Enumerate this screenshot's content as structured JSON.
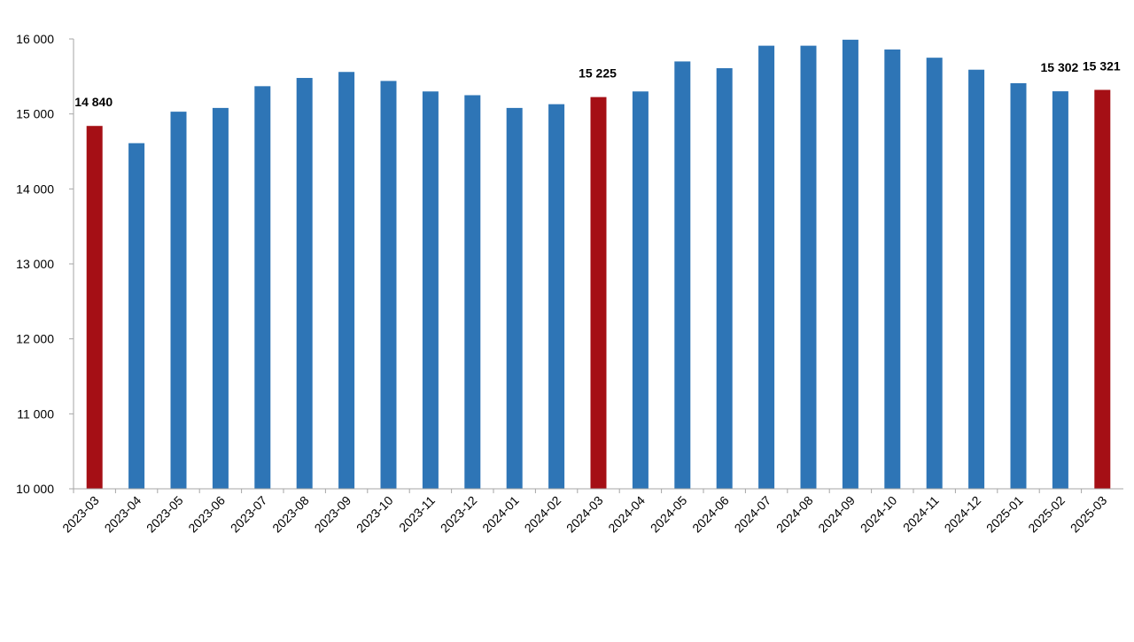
{
  "chart_data": {
    "type": "bar",
    "title": "",
    "xlabel": "",
    "ylabel": "",
    "ylim": [
      10000,
      16000
    ],
    "y_ticks": [
      10000,
      11000,
      12000,
      13000,
      14000,
      15000,
      16000
    ],
    "y_tick_labels": [
      "10 000",
      "11 000",
      "12 000",
      "13 000",
      "14 000",
      "15 000",
      "16 000"
    ],
    "grid": false,
    "legend": "none",
    "categories": [
      "2023-03",
      "2023-04",
      "2023-05",
      "2023-06",
      "2023-07",
      "2023-08",
      "2023-09",
      "2023-10",
      "2023-11",
      "2023-12",
      "2024-01",
      "2024-02",
      "2024-03",
      "2024-04",
      "2024-05",
      "2024-06",
      "2024-07",
      "2024-08",
      "2024-09",
      "2024-10",
      "2024-11",
      "2024-12",
      "2025-01",
      "2025-02",
      "2025-03"
    ],
    "values": [
      14840,
      14610,
      15030,
      15080,
      15370,
      15480,
      15560,
      15440,
      15300,
      15250,
      15080,
      15130,
      15225,
      15300,
      15700,
      15610,
      15910,
      15910,
      15990,
      15860,
      15750,
      15590,
      15410,
      15302,
      15321
    ],
    "highlight": [
      true,
      false,
      false,
      false,
      false,
      false,
      false,
      false,
      false,
      false,
      false,
      false,
      true,
      false,
      false,
      false,
      false,
      false,
      false,
      false,
      false,
      false,
      false,
      false,
      true
    ],
    "data_labels": [
      {
        "index": 0,
        "text": "14 840"
      },
      {
        "index": 12,
        "text": "15 225"
      },
      {
        "index": 23,
        "text": "15 302"
      },
      {
        "index": 24,
        "text": "15 321"
      }
    ],
    "colors": {
      "bar": "#2E75B6",
      "highlight": "#A50F15",
      "axis": "#A6A6A6"
    }
  }
}
